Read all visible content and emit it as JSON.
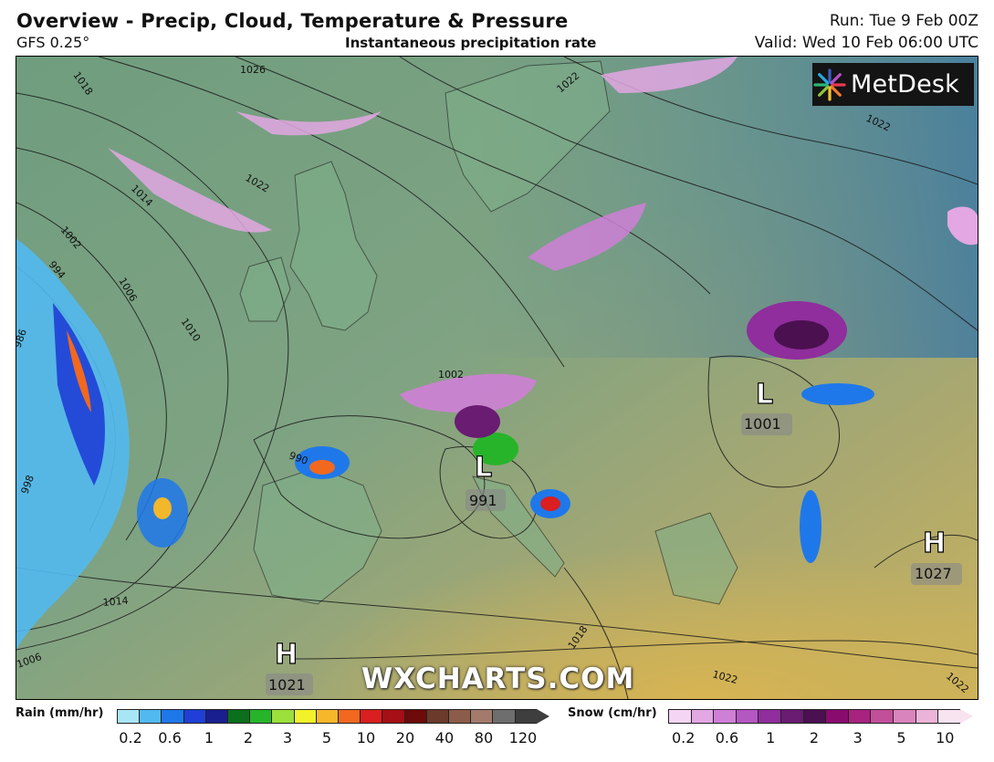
{
  "header": {
    "title": "Overview - Precip, Cloud, Temperature & Pressure",
    "model": "GFS 0.25°",
    "subtitle": "Instantaneous precipitation rate",
    "run": "Run: Tue 9 Feb 00Z",
    "valid": "Valid: Wed 10 Feb 06:00 UTC"
  },
  "logo": {
    "text": "MetDesk",
    "icon": "starburst-logo-icon"
  },
  "watermark": "WXCHARTS.COM",
  "map": {
    "pressure_centers": [
      {
        "type": "L",
        "value": "991"
      },
      {
        "type": "L",
        "value": "1001"
      },
      {
        "type": "H",
        "value": "1021"
      },
      {
        "type": "H",
        "value": "1027"
      }
    ],
    "isobar_labels": [
      "1026",
      "1018",
      "1022",
      "1014",
      "1002",
      "994",
      "1006",
      "1010",
      "986",
      "998",
      "990",
      "1002",
      "1014",
      "1018",
      "1022",
      "1022",
      "1022",
      "1022",
      "1006"
    ]
  },
  "legend": {
    "rain": {
      "title": "Rain (mm/hr)",
      "colors": [
        "#a8e6f7",
        "#52b9f0",
        "#1f78ea",
        "#1f3fd6",
        "#1a1f8f",
        "#0b6f1d",
        "#27b42a",
        "#9be03b",
        "#f2f22b",
        "#f7b72a",
        "#f2681f",
        "#d91f1f",
        "#a50f15",
        "#6d0a0a",
        "#6b3a2a",
        "#8c5c4a",
        "#a27b6d",
        "#6e6e6e",
        "#3e3e3e"
      ],
      "ticks": [
        "0.2",
        "0.6",
        "1",
        "2",
        "3",
        "5",
        "10",
        "20",
        "40",
        "80",
        "120"
      ]
    },
    "snow": {
      "title": "Snow (cm/hr)",
      "colors": [
        "#f4d6f4",
        "#e3a7e3",
        "#cf7fd6",
        "#b457c2",
        "#8f2e9c",
        "#6a1b72",
        "#4b1050",
        "#8a0b6e",
        "#a7237e",
        "#c24f9a",
        "#da84bd",
        "#ecb3d8",
        "#f8e3f0"
      ],
      "ticks": [
        "0.2",
        "0.6",
        "1",
        "2",
        "3",
        "5",
        "10"
      ]
    }
  }
}
